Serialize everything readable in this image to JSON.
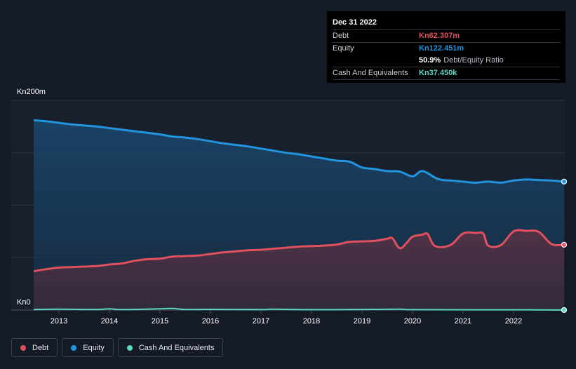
{
  "tooltip": {
    "date": "Dec 31 2022",
    "debt_label": "Debt",
    "debt_value": "Kn62.307m",
    "equity_label": "Equity",
    "equity_value": "Kn122.451m",
    "ratio_value": "50.9%",
    "ratio_label": "Debt/Equity Ratio",
    "cash_label": "Cash And Equivalents",
    "cash_value": "Kn37.450k"
  },
  "legend": {
    "debt": "Debt",
    "equity": "Equity",
    "cash": "Cash And Equivalents"
  },
  "colors": {
    "debt": "#e0505e",
    "equity": "#2394df",
    "cash": "#5ad8c4"
  },
  "chart_data": {
    "type": "area",
    "ylim": [
      0,
      200
    ],
    "y_tick_labels": [
      "Kn200m",
      "Kn0"
    ],
    "x_ticks": [
      "2013",
      "2014",
      "2015",
      "2016",
      "2017",
      "2018",
      "2019",
      "2020",
      "2021",
      "2022"
    ],
    "series": [
      {
        "name": "Equity",
        "x": [
          2012.5,
          2012.75,
          2013.0,
          2013.25,
          2013.5,
          2013.75,
          2014.0,
          2014.25,
          2014.5,
          2014.75,
          2015.0,
          2015.25,
          2015.5,
          2015.75,
          2016.0,
          2016.25,
          2016.5,
          2016.75,
          2017.0,
          2017.25,
          2017.5,
          2017.75,
          2018.0,
          2018.25,
          2018.5,
          2018.75,
          2019.0,
          2019.25,
          2019.5,
          2019.75,
          2020.0,
          2020.2,
          2020.5,
          2020.75,
          2021.0,
          2021.25,
          2021.5,
          2021.75,
          2022.0,
          2022.25,
          2022.5,
          2022.75,
          2023.0
        ],
        "values": [
          181,
          180,
          178.5,
          177,
          176,
          175,
          173.5,
          172,
          170.5,
          169,
          167.5,
          165.5,
          164.5,
          163,
          161,
          159,
          157.5,
          156,
          154,
          152,
          150,
          148.5,
          146.5,
          144.5,
          142.5,
          141.5,
          136,
          134.5,
          132.5,
          132,
          127.5,
          132.5,
          125,
          123.5,
          122.5,
          121.5,
          122.5,
          121.5,
          123.5,
          124.5,
          124,
          123.5,
          122.5
        ]
      },
      {
        "name": "Debt",
        "x": [
          2012.5,
          2012.75,
          2013.0,
          2013.25,
          2013.5,
          2013.75,
          2014.0,
          2014.25,
          2014.5,
          2014.75,
          2015.0,
          2015.25,
          2015.5,
          2015.75,
          2016.0,
          2016.25,
          2016.5,
          2016.75,
          2017.0,
          2017.25,
          2017.5,
          2017.75,
          2018.0,
          2018.25,
          2018.5,
          2018.75,
          2019.0,
          2019.25,
          2019.5,
          2019.6,
          2019.75,
          2019.9,
          2020.0,
          2020.2,
          2020.3,
          2020.45,
          2020.75,
          2021.0,
          2021.25,
          2021.4,
          2021.5,
          2021.75,
          2022.0,
          2022.25,
          2022.5,
          2022.75,
          2023.0
        ],
        "values": [
          37,
          39,
          40.5,
          41,
          41.5,
          42,
          43.5,
          44.5,
          47,
          48.5,
          49,
          51,
          51.5,
          52,
          53.5,
          55,
          56,
          57,
          57.5,
          58.5,
          59.5,
          60.5,
          61,
          61.5,
          62.5,
          65,
          65.5,
          66,
          68,
          68.5,
          59,
          65,
          70,
          72,
          72.5,
          61,
          62,
          73,
          73.5,
          73,
          61.5,
          62,
          75,
          75.5,
          74.5,
          63,
          62.3
        ]
      },
      {
        "name": "Cash And Equivalents",
        "x": [
          2012.5,
          2013.0,
          2013.75,
          2014.0,
          2014.25,
          2015.0,
          2015.25,
          2015.5,
          2016.0,
          2017.0,
          2017.25,
          2018.0,
          2019.0,
          2019.75,
          2020.0,
          2021.0,
          2022.0,
          2023.0
        ],
        "values": [
          0.5,
          0.8,
          0.6,
          1.2,
          0.5,
          1.2,
          1.5,
          0.6,
          0.7,
          0.5,
          0.9,
          0.4,
          0.6,
          0.8,
          0.4,
          0.3,
          0.3,
          0.04
        ]
      }
    ],
    "grid": true,
    "legend_position": "bottom-left"
  }
}
